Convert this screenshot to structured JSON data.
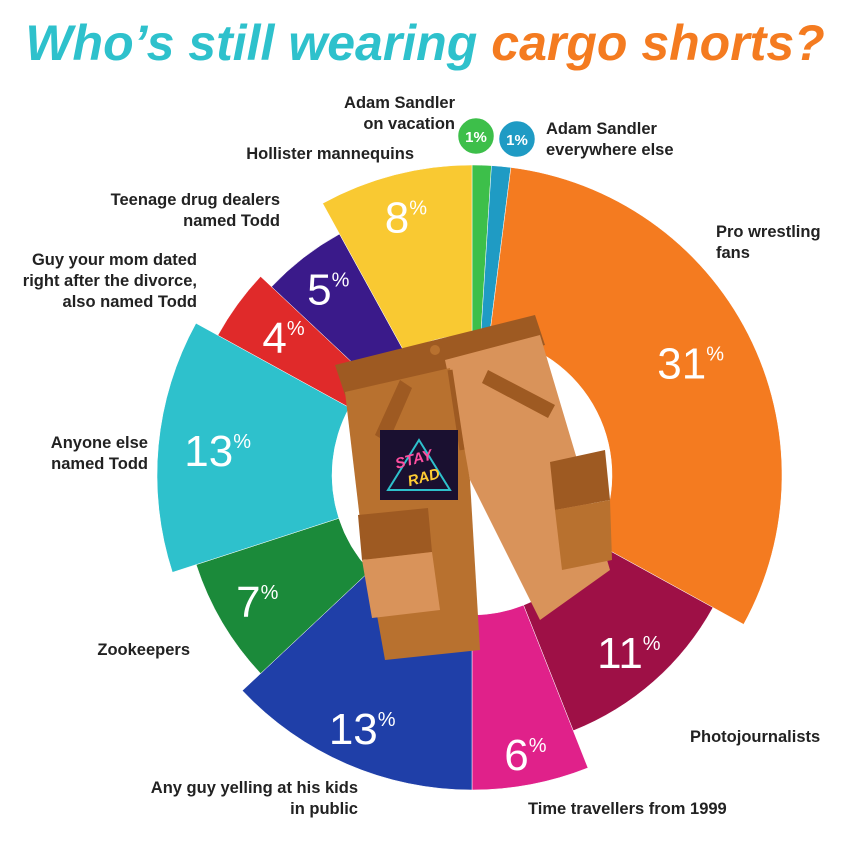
{
  "chart_data": {
    "type": "pie",
    "title_part1": "Who’s still wearing",
    "title_part2": "cargo shorts?",
    "unit": "%",
    "slices": [
      {
        "label": [
          "Adam Sandler",
          "on vacation"
        ],
        "value": 1,
        "color": "#3dbf4a"
      },
      {
        "label": [
          "Adam Sandler",
          "everywhere else"
        ],
        "value": 1,
        "color": "#1f9bc4"
      },
      {
        "label": [
          "Pro wrestling",
          "fans"
        ],
        "value": 31,
        "color": "#f47b20"
      },
      {
        "label": [
          "Photojournalists"
        ],
        "value": 11,
        "color": "#9e1046"
      },
      {
        "label": [
          "Time travellers from 1999"
        ],
        "value": 6,
        "color": "#e0218a"
      },
      {
        "label": [
          "Any guy yelling at his kids",
          "in public"
        ],
        "value": 13,
        "color": "#1f3fa8"
      },
      {
        "label": [
          "Zookeepers"
        ],
        "value": 7,
        "color": "#1b8a3a"
      },
      {
        "label": [
          "Anyone else",
          "named Todd"
        ],
        "value": 13,
        "color": "#2ec1cc"
      },
      {
        "label": [
          "Guy your mom dated",
          "right after the divorce,",
          "also named Todd"
        ],
        "value": 4,
        "color": "#e02a2a"
      },
      {
        "label": [
          "Teenage drug dealers",
          "named Todd"
        ],
        "value": 5,
        "color": "#3a1a8a"
      },
      {
        "label": [
          "Hollister mannequins"
        ],
        "value": 8,
        "color": "#f9c932"
      }
    ]
  },
  "colors": {
    "title_part1": "#2ec1cc",
    "title_part2": "#f47b20",
    "shorts_dark": "#b8712f",
    "shorts_light": "#d9935a",
    "shorts_pocket": "#9e5a22"
  },
  "logo": {
    "line1": "STAY",
    "line2": "RAD"
  }
}
